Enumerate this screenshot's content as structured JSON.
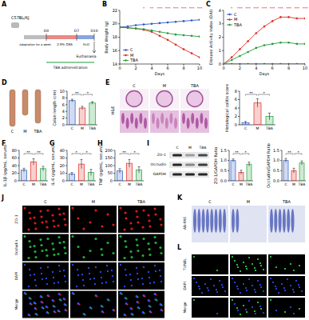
{
  "panel_labels": [
    "A",
    "B",
    "C",
    "D",
    "E",
    "F",
    "G",
    "H",
    "I",
    "J",
    "K",
    "L"
  ],
  "schematic": {
    "strain": "C57BL/6J",
    "days": [
      "D0",
      "D7",
      "D10"
    ],
    "phases": [
      "Adaptation for a week",
      "2.5% DSS",
      "H₂O"
    ],
    "end": "Euthanasia",
    "treatment": "TBA administration"
  },
  "images": {
    "groups": [
      "C",
      "M",
      "TBA"
    ],
    "he": "H&E",
    "blot_rows": [
      "ZO-1",
      "Occludin",
      "GAPDH"
    ],
    "if_rows": [
      "ZO-1",
      "Occludin",
      "DAPI",
      "Merge"
    ],
    "abpas": "AB-PAS",
    "tunel_rows": [
      "TUNEL",
      "DAPI",
      "Merge"
    ]
  },
  "chart_data": [
    {
      "type": "line",
      "y_label": "Body Weight (g)",
      "x_label": "Days",
      "x": [
        0,
        1,
        2,
        3,
        4,
        5,
        6,
        7,
        8,
        9,
        10
      ],
      "xlim": [
        0,
        10
      ],
      "xticks": [
        0,
        2,
        4,
        6,
        8,
        10
      ],
      "ylim": [
        14,
        22
      ],
      "yticks": [
        14,
        16,
        18,
        20,
        22
      ],
      "legend": "bottom-left",
      "marker": "circle",
      "annotations": [
        null,
        null,
        null,
        "*",
        "**",
        "***",
        "***",
        "***",
        "***",
        "***",
        "***"
      ],
      "series": [
        {
          "name": "C",
          "color": "#2b59c3",
          "values": [
            19.5,
            19.6,
            19.8,
            19.9,
            20.0,
            20.1,
            20.2,
            20.3,
            20.4,
            20.5,
            20.6
          ]
        },
        {
          "name": "M",
          "color": "#e02b20",
          "values": [
            19.5,
            19.4,
            19.3,
            19.1,
            18.8,
            18.2,
            17.6,
            16.9,
            16.2,
            15.6,
            15.0
          ]
        },
        {
          "name": "TBA",
          "color": "#1f9e3a",
          "values": [
            19.5,
            19.4,
            19.3,
            19.2,
            19.0,
            18.8,
            18.6,
            18.4,
            18.3,
            18.2,
            18.1
          ]
        }
      ]
    },
    {
      "type": "line",
      "y_label": "Disease Activity Index (DAI)",
      "x_label": "Days",
      "x": [
        0,
        1,
        2,
        3,
        4,
        5,
        6,
        7,
        8,
        9,
        10
      ],
      "xlim": [
        0,
        10
      ],
      "xticks": [
        0,
        2,
        4,
        6,
        8,
        10
      ],
      "ylim": [
        0,
        4
      ],
      "yticks": [
        0,
        1,
        2,
        3,
        4
      ],
      "legend": "top-left",
      "marker": "circle",
      "annotations": [
        null,
        "*",
        "***",
        "***",
        "***",
        "***",
        "***",
        "***",
        "***",
        "***",
        "***"
      ],
      "series": [
        {
          "name": "C",
          "color": "#2b59c3",
          "values": [
            0,
            0,
            0,
            0,
            0,
            0,
            0,
            0,
            0,
            0,
            0
          ]
        },
        {
          "name": "M",
          "color": "#e02b20",
          "values": [
            0,
            0.5,
            1.1,
            1.7,
            2.3,
            2.8,
            3.2,
            3.5,
            3.5,
            3.4,
            3.4
          ]
        },
        {
          "name": "TBA",
          "color": "#1f9e3a",
          "values": [
            0,
            0.3,
            0.6,
            0.9,
            1.2,
            1.4,
            1.5,
            1.6,
            1.6,
            1.5,
            1.5
          ]
        }
      ]
    },
    {
      "type": "bar",
      "y_label": "Colon length (cm)",
      "categories": [
        "C",
        "M",
        "TBA"
      ],
      "values": [
        7.2,
        5.0,
        6.5
      ],
      "errors": [
        0.4,
        0.5,
        0.4
      ],
      "colors": [
        "#2b59c3",
        "#e02b20",
        "#1f9e3a"
      ],
      "ylim": [
        0,
        10
      ],
      "yticks": [
        0,
        2,
        4,
        6,
        8,
        10
      ],
      "annotations": [
        "**",
        "*"
      ]
    },
    {
      "type": "bar",
      "y_label": "Histological colitis score",
      "categories": [
        "C",
        "M",
        "TBA"
      ],
      "values": [
        0.5,
        5.2,
        2.0
      ],
      "errors": [
        0.3,
        1.0,
        0.8
      ],
      "colors": [
        "#2b59c3",
        "#e02b20",
        "#1f9e3a"
      ],
      "ylim": [
        0,
        8
      ],
      "yticks": [
        0,
        2,
        4,
        6,
        8
      ],
      "annotations": [
        "**",
        "*"
      ]
    },
    {
      "type": "bar",
      "y_label": "IL-1β (pg/mL, serum)",
      "categories": [
        "C",
        "M",
        "TBA"
      ],
      "values": [
        28,
        50,
        32
      ],
      "errors": [
        5,
        8,
        6
      ],
      "colors": [
        "#2b59c3",
        "#e02b20",
        "#1f9e3a"
      ],
      "ylim": [
        0,
        80
      ],
      "yticks": [
        0,
        20,
        40,
        60,
        80
      ],
      "annotations": [
        "**",
        "**"
      ]
    },
    {
      "type": "bar",
      "y_label": "IL-6 (pg/mL, serum)",
      "categories": [
        "C",
        "M",
        "TBA"
      ],
      "values": [
        9,
        22,
        11
      ],
      "errors": [
        2,
        6,
        4
      ],
      "colors": [
        "#2b59c3",
        "#e02b20",
        "#1f9e3a"
      ],
      "ylim": [
        0,
        40
      ],
      "yticks": [
        0,
        10,
        20,
        30,
        40
      ],
      "annotations": [
        "*",
        "*"
      ]
    },
    {
      "type": "bar",
      "y_label": "TNF (pg/mL, serum)",
      "categories": [
        "C",
        "M",
        "TBA"
      ],
      "values": [
        65,
        115,
        72
      ],
      "errors": [
        15,
        25,
        20
      ],
      "colors": [
        "#2b59c3",
        "#e02b20",
        "#1f9e3a"
      ],
      "ylim": [
        0,
        200
      ],
      "yticks": [
        0,
        50,
        100,
        150,
        200
      ],
      "annotations": [
        "**",
        "*"
      ]
    },
    {
      "type": "bar",
      "y_label": "ZO-1/GAPDH Ratio",
      "categories": [
        "C",
        "M",
        "TBA"
      ],
      "values": [
        1.0,
        0.42,
        0.82
      ],
      "errors": [
        0.08,
        0.1,
        0.1
      ],
      "colors": [
        "#2b59c3",
        "#e02b20",
        "#1f9e3a"
      ],
      "ylim": [
        0,
        1.5
      ],
      "yticks": [
        {
          "value": 0,
          "label": "0.0"
        },
        0.5,
        {
          "value": 1,
          "label": "1.0"
        },
        1.5
      ],
      "annotations": [
        "**",
        "*"
      ]
    },
    {
      "type": "bar",
      "y_label": "Occludin/GAPDH Ratio",
      "categories": [
        "C",
        "M",
        "TBA"
      ],
      "values": [
        1.0,
        0.5,
        0.88
      ],
      "errors": [
        0.1,
        0.12,
        0.1
      ],
      "colors": [
        "#2b59c3",
        "#e02b20",
        "#1f9e3a"
      ],
      "ylim": [
        0,
        1.5
      ],
      "yticks": [
        {
          "value": 0,
          "label": "0.0"
        },
        0.5,
        {
          "value": 1,
          "label": "1.0"
        },
        1.5
      ],
      "annotations": [
        "**",
        "*"
      ]
    }
  ]
}
